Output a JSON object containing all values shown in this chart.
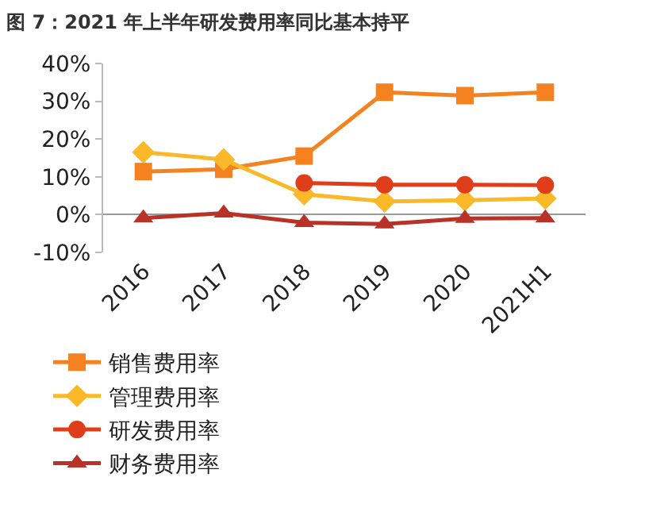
{
  "chart_data": {
    "type": "line",
    "title": "图 7：2021 年上半年研发费用率同比基本持平",
    "categories": [
      "2016",
      "2017",
      "2018",
      "2019",
      "2020",
      "2021H1"
    ],
    "series": [
      {
        "name": "销售费用率",
        "color": "#f58220",
        "marker": "square",
        "values": [
          11.4,
          12.0,
          15.5,
          32.4,
          31.5,
          32.4
        ]
      },
      {
        "name": "管理费用率",
        "color": "#fbb829",
        "marker": "diamond",
        "values": [
          16.5,
          14.6,
          5.4,
          3.5,
          3.8,
          4.3
        ]
      },
      {
        "name": "研发费用率",
        "color": "#e03e1a",
        "marker": "circle",
        "values": [
          null,
          null,
          8.4,
          7.9,
          7.9,
          7.8
        ]
      },
      {
        "name": "财务费用率",
        "color": "#b83227",
        "marker": "triangle",
        "values": [
          -0.9,
          0.4,
          -2.1,
          -2.5,
          -1.0,
          -0.9
        ]
      }
    ],
    "ylim": [
      -10,
      40
    ],
    "yticks": [
      {
        "value": -10,
        "label": "-10%"
      },
      {
        "value": 0,
        "label": "0%"
      },
      {
        "value": 10,
        "label": "10%"
      },
      {
        "value": 20,
        "label": "20%"
      },
      {
        "value": 30,
        "label": "30%"
      },
      {
        "value": 40,
        "label": "40%"
      }
    ],
    "legend": "bottom"
  }
}
